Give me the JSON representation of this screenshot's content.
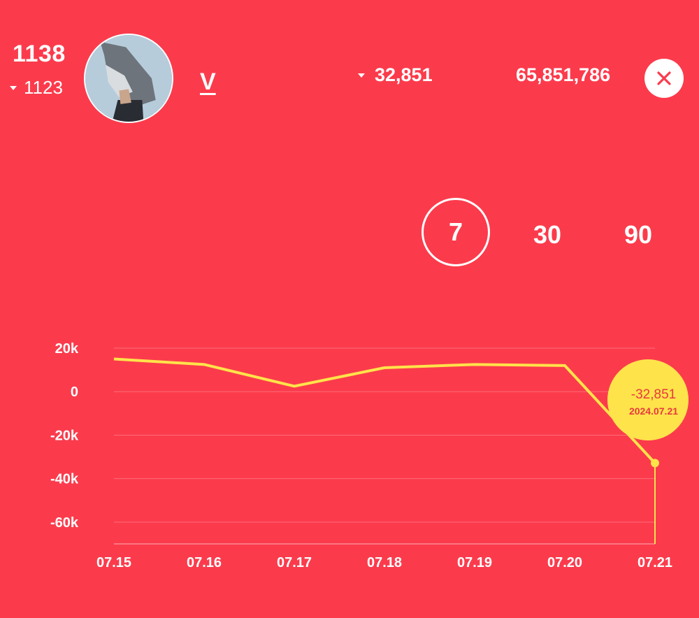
{
  "header": {
    "rank": "1138",
    "previous_rank": "1123",
    "artist_name": "V",
    "daily_change": "32,851",
    "total_count": "65,851,786",
    "close_icon": "close-icon",
    "down_arrow_icon": "down-triangle-icon"
  },
  "periods": [
    {
      "label": "7",
      "active": true
    },
    {
      "label": "30",
      "active": false
    },
    {
      "label": "90",
      "active": false
    }
  ],
  "colors": {
    "background": "#fb3b4c",
    "line": "#ffe34a",
    "text": "#ffffff",
    "tooltip_text": "#e8393f"
  },
  "chart_data": {
    "type": "line",
    "x": [
      "07.15",
      "07.16",
      "07.17",
      "07.18",
      "07.19",
      "07.20",
      "07.21"
    ],
    "series": [
      {
        "values": [
          15000,
          12500,
          2500,
          11000,
          12500,
          12000,
          -32851
        ]
      }
    ],
    "y_ticks": [
      "20k",
      "0",
      "-20k",
      "-40k",
      "-60k"
    ],
    "y_tick_values": [
      20000,
      0,
      -20000,
      -40000,
      -60000
    ],
    "ylim": [
      -70000,
      20000
    ],
    "grid": true,
    "tooltip": {
      "value": "-32,851",
      "date": "2024.07.21"
    }
  }
}
